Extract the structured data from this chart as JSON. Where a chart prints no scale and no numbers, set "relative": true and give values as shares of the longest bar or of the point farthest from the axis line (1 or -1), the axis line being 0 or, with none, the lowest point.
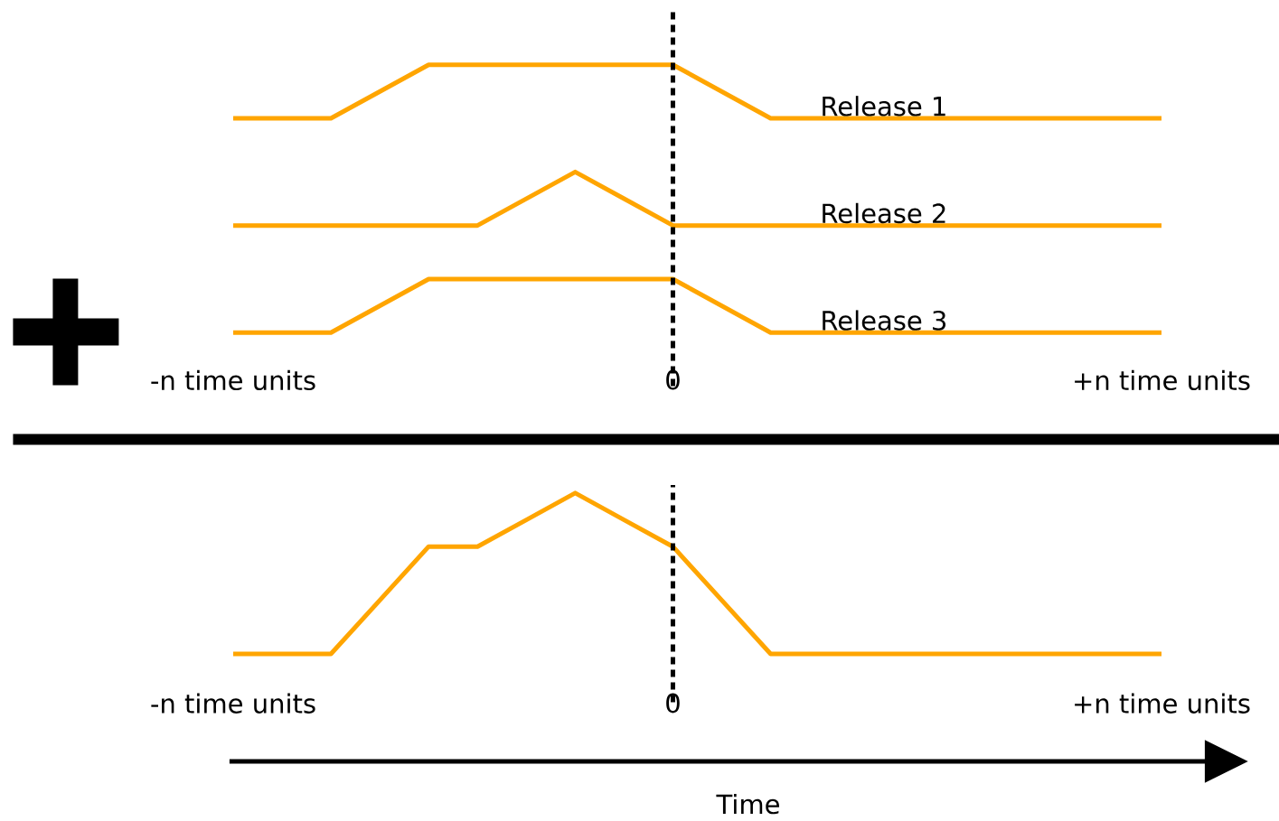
{
  "chart_data": [
    {
      "type": "line",
      "relative": true,
      "categories": [
        "-n time units",
        null,
        null,
        null,
        null,
        null,
        null,
        null,
        null,
        "0",
        null,
        null,
        null,
        null,
        null,
        null,
        null,
        null,
        null,
        "+n time units"
      ],
      "series": [
        {
          "name": "Release 1",
          "color": "#ffa500",
          "values": [
            0.8,
            0.8,
            0.8,
            0.9,
            1,
            1,
            1,
            1,
            1,
            1,
            0.9,
            0.8,
            0.8,
            0.8,
            0.8,
            0.8,
            0.8,
            0.8,
            0.8,
            0.8
          ]
        },
        {
          "name": "Release 2",
          "color": "#ffa500",
          "values": [
            0.4,
            0.4,
            0.4,
            0.4,
            0.4,
            0.4,
            0.5,
            0.6,
            0.5,
            0.4,
            0.4,
            0.4,
            0.4,
            0.4,
            0.4,
            0.4,
            0.4,
            0.4,
            0.4,
            0.4
          ]
        },
        {
          "name": "Release 3",
          "color": "#ffa500",
          "values": [
            0,
            0,
            0,
            0.1,
            0.2,
            0.2,
            0.2,
            0.2,
            0.2,
            0.2,
            0.1,
            0,
            0,
            0,
            0,
            0,
            0,
            0,
            0,
            0
          ]
        }
      ],
      "ref_lines": [
        {
          "axis": "x",
          "value": "0",
          "color": "#000000",
          "line_style": "dotted"
        }
      ]
    },
    {
      "type": "line",
      "relative": true,
      "xlabel": "Time",
      "categories": [
        "-n time units",
        null,
        null,
        null,
        null,
        null,
        null,
        null,
        null,
        "0",
        null,
        null,
        null,
        null,
        null,
        null,
        null,
        null,
        null,
        "+n time units"
      ],
      "series": [
        {
          "color": "#ffa500",
          "values": [
            0,
            0,
            0,
            0.333,
            0.667,
            0.667,
            0.833,
            1,
            0.833,
            0.667,
            0.333,
            0,
            0,
            0,
            0,
            0,
            0,
            0,
            0,
            0
          ]
        }
      ],
      "ref_lines": [
        {
          "axis": "x",
          "value": "0",
          "color": "#000000",
          "line_style": "dotted"
        }
      ]
    }
  ]
}
